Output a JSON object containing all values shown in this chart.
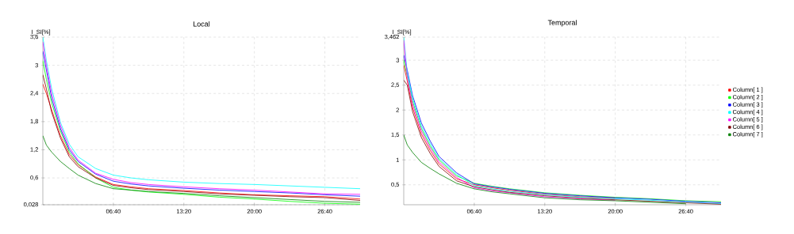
{
  "chart_data": [
    {
      "type": "line",
      "title": "Local",
      "ylabel": "I_SI[%]",
      "grid": true,
      "legend": false,
      "x": [
        0,
        20,
        50,
        100,
        150,
        200,
        300,
        400,
        500,
        600,
        800,
        1000,
        1200,
        1400,
        1600,
        1800
      ],
      "xlim": [
        0,
        1800
      ],
      "xticks": [
        {
          "value": 400,
          "label": "06:40"
        },
        {
          "value": 800,
          "label": "13:20"
        },
        {
          "value": 1200,
          "label": "20:00"
        },
        {
          "value": 1600,
          "label": "26:40"
        }
      ],
      "ylim": [
        0.028,
        3.6
      ],
      "yticks": [
        {
          "value": 0.028,
          "label": "0,028"
        },
        {
          "value": 0.6,
          "label": "0,6"
        },
        {
          "value": 1.2,
          "label": "1,2"
        },
        {
          "value": 1.8,
          "label": "1,8"
        },
        {
          "value": 2.4,
          "label": "2,4"
        },
        3,
        {
          "value": 3.6,
          "label": "3,6"
        }
      ],
      "series": [
        {
          "color": "#ff0000",
          "values": [
            2.6,
            2.4,
            2.05,
            1.5,
            1.1,
            0.88,
            0.62,
            0.46,
            0.41,
            0.37,
            0.33,
            0.28,
            0.24,
            0.22,
            0.2,
            0.15
          ]
        },
        {
          "color": "#00ff00",
          "values": [
            3.1,
            2.7,
            2.2,
            1.6,
            1.15,
            0.9,
            0.6,
            0.4,
            0.34,
            0.3,
            0.25,
            0.19,
            0.15,
            0.1,
            0.06,
            0.04
          ]
        },
        {
          "color": "#0000ff",
          "values": [
            3.3,
            2.9,
            2.3,
            1.65,
            1.2,
            0.95,
            0.68,
            0.53,
            0.47,
            0.43,
            0.38,
            0.34,
            0.31,
            0.28,
            0.24,
            0.21
          ]
        },
        {
          "color": "#00ffff",
          "values": [
            3.6,
            3.1,
            2.5,
            1.78,
            1.32,
            1.05,
            0.8,
            0.66,
            0.6,
            0.56,
            0.51,
            0.48,
            0.46,
            0.43,
            0.4,
            0.37
          ]
        },
        {
          "color": "#ff00ff",
          "values": [
            3.5,
            3.0,
            2.4,
            1.72,
            1.25,
            0.98,
            0.7,
            0.57,
            0.5,
            0.46,
            0.41,
            0.37,
            0.34,
            0.3,
            0.26,
            0.25
          ]
        },
        {
          "color": "#800000",
          "values": [
            2.8,
            2.5,
            2.0,
            1.45,
            1.05,
            0.84,
            0.6,
            0.44,
            0.39,
            0.35,
            0.31,
            0.26,
            0.23,
            0.2,
            0.18,
            0.12
          ]
        },
        {
          "color": "#008000",
          "values": [
            1.5,
            1.3,
            1.15,
            0.95,
            0.8,
            0.66,
            0.48,
            0.37,
            0.34,
            0.31,
            0.27,
            0.22,
            0.18,
            0.14,
            0.1,
            0.08
          ]
        }
      ]
    },
    {
      "type": "line",
      "title": "Temporal",
      "ylabel": "I_SI[%]",
      "grid": true,
      "legend": "right",
      "x": [
        0,
        20,
        50,
        100,
        150,
        200,
        300,
        400,
        500,
        600,
        800,
        1000,
        1200,
        1400,
        1600,
        1800
      ],
      "xlim": [
        0,
        1800
      ],
      "xticks": [
        {
          "value": 400,
          "label": "06:40"
        },
        {
          "value": 800,
          "label": "13:20"
        },
        {
          "value": 1200,
          "label": "20:00"
        },
        {
          "value": 1600,
          "label": "26:40"
        }
      ],
      "ylim": [
        0.1,
        3.462
      ],
      "yticks": [
        {
          "value": 0.5,
          "label": "0,5"
        },
        1,
        {
          "value": 1.5,
          "label": "1,5"
        },
        2,
        {
          "value": 2.5,
          "label": "2,5"
        },
        3,
        {
          "value": 3.462,
          "label": "3,462"
        }
      ],
      "series": [
        {
          "name": "Column[ 1 ]",
          "color": "#ff0000",
          "values": [
            2.9,
            2.58,
            2.05,
            1.52,
            1.19,
            0.92,
            0.62,
            0.5,
            0.44,
            0.39,
            0.31,
            0.26,
            0.23,
            null,
            null,
            null
          ]
        },
        {
          "name": "Column[ 2 ]",
          "color": "#00ff00",
          "values": [
            3.0,
            null,
            2.18,
            1.63,
            1.28,
            1.0,
            0.68,
            0.53,
            0.47,
            0.42,
            0.34,
            0.29,
            0.25,
            0.22,
            0.18,
            0.16
          ]
        },
        {
          "name": "Column[ 3 ]",
          "color": "#0000ff",
          "values": [
            3.1,
            2.8,
            2.29,
            1.74,
            1.38,
            1.07,
            0.74,
            0.52,
            0.46,
            0.41,
            0.33,
            0.28,
            0.24,
            0.21,
            0.17,
            0.14
          ]
        },
        {
          "name": "Column[ 4 ]",
          "color": "#00ffff",
          "values": [
            3.46,
            2.75,
            2.24,
            1.68,
            1.33,
            1.03,
            0.71,
            0.48,
            0.42,
            0.37,
            0.3,
            0.25,
            0.22,
            0.19,
            0.15,
            0.12
          ]
        },
        {
          "name": "Column[ 5 ]",
          "color": "#ff00ff",
          "values": [
            3.4,
            2.65,
            2.12,
            1.58,
            1.24,
            0.96,
            0.65,
            0.44,
            0.38,
            0.34,
            0.26,
            0.22,
            0.19,
            null,
            null,
            null
          ]
        },
        {
          "name": "Column[ 6 ]",
          "color": "#800000",
          "values": [
            2.6,
            2.5,
            1.97,
            1.45,
            1.13,
            0.87,
            0.58,
            0.46,
            0.4,
            0.35,
            0.28,
            0.23,
            0.2,
            0.17,
            0.14,
            0.11
          ]
        },
        {
          "name": "Column[ 7 ]",
          "color": "#008000",
          "values": [
            1.5,
            1.3,
            1.15,
            0.95,
            0.83,
            0.72,
            0.53,
            0.42,
            0.36,
            0.32,
            0.24,
            0.2,
            0.18,
            0.15,
            0.12,
            null
          ]
        }
      ]
    }
  ]
}
